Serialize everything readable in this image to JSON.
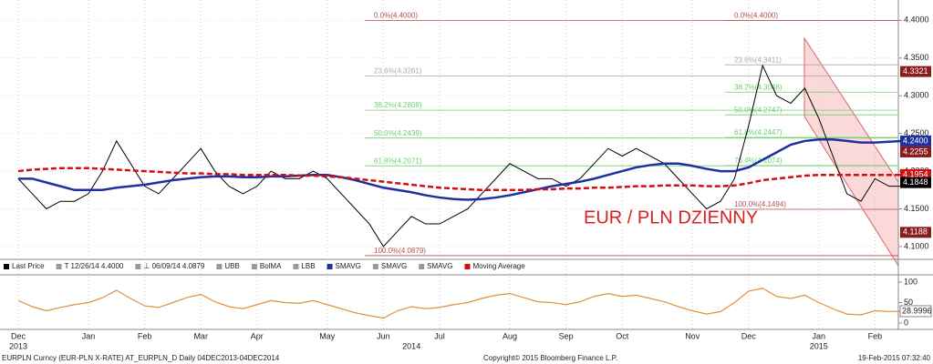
{
  "chart_data": {
    "type": "line",
    "annotation": "EUR / PLN DZIENNY",
    "categories": [
      "Dec",
      null,
      null,
      null,
      null,
      "Jan",
      null,
      null,
      null,
      "Feb",
      null,
      null,
      null,
      "Mar",
      null,
      null,
      null,
      "Apr",
      null,
      null,
      null,
      null,
      "May",
      null,
      null,
      null,
      "Jun",
      null,
      null,
      null,
      "Jul",
      null,
      null,
      null,
      null,
      "Aug",
      null,
      null,
      null,
      "Sep",
      null,
      null,
      null,
      "Oct",
      null,
      null,
      null,
      null,
      "Nov",
      null,
      null,
      null,
      "Dec",
      null,
      null,
      null,
      null,
      "Jan",
      null,
      null,
      null,
      "Feb",
      null,
      null
    ],
    "year_labels": [
      "2013",
      null,
      null,
      null,
      null,
      null,
      null,
      null,
      null,
      null,
      null,
      null,
      null,
      null,
      null,
      null,
      null,
      null,
      null,
      null,
      null,
      null,
      null,
      null,
      null,
      null,
      null,
      null,
      "2014",
      null,
      null,
      null,
      null,
      null,
      null,
      null,
      null,
      null,
      null,
      null,
      null,
      null,
      null,
      null,
      null,
      null,
      null,
      null,
      null,
      null,
      null,
      null,
      null,
      null,
      null,
      null,
      null,
      "2015",
      null,
      null,
      null,
      null,
      null,
      null
    ],
    "ylim": [
      4.083,
      4.427
    ],
    "yticks": [
      {
        "value": 4.1,
        "label": "4.1000"
      },
      {
        "value": 4.15,
        "label": "4.1500"
      },
      {
        "value": 4.2,
        "label": "4.2000"
      },
      {
        "value": 4.25,
        "label": "4.2500"
      },
      {
        "value": 4.3,
        "label": "4.3000"
      },
      {
        "value": 4.35,
        "label": "4.3500"
      },
      {
        "value": 4.4,
        "label": "4.4000"
      }
    ],
    "series": [
      {
        "name": "Last Price",
        "color": "#000000",
        "legend_after": [
          "T 12/26/14 4.4000",
          "⊥ 06/09/14 4.0879",
          "UBB",
          "BolMA",
          "LBB"
        ],
        "values": [
          4.19,
          4.17,
          4.15,
          4.16,
          4.16,
          4.17,
          4.2,
          4.24,
          4.21,
          4.18,
          4.17,
          4.19,
          4.21,
          4.23,
          4.2,
          4.18,
          4.17,
          4.18,
          4.2,
          4.19,
          4.19,
          4.2,
          4.19,
          4.17,
          4.15,
          4.13,
          4.1,
          4.12,
          4.14,
          4.13,
          4.13,
          4.14,
          4.15,
          4.17,
          4.19,
          4.21,
          4.2,
          4.19,
          4.19,
          4.18,
          4.19,
          4.21,
          4.23,
          4.22,
          4.23,
          4.22,
          4.21,
          4.19,
          4.17,
          4.15,
          4.16,
          4.19,
          4.26,
          4.34,
          4.3,
          4.29,
          4.31,
          4.27,
          4.22,
          4.17,
          4.16,
          4.19,
          4.18,
          4.18
        ]
      },
      {
        "name": "SMAVG",
        "color": "#1f2fa0",
        "legend_after": [
          "SMAVG",
          "SMAVG"
        ],
        "values": [
          4.19,
          4.19,
          4.185,
          4.18,
          4.175,
          4.175,
          4.175,
          4.178,
          4.18,
          4.182,
          4.185,
          4.188,
          4.19,
          4.192,
          4.193,
          4.193,
          4.192,
          4.192,
          4.193,
          4.193,
          4.194,
          4.195,
          4.195,
          4.192,
          4.188,
          4.183,
          4.178,
          4.175,
          4.172,
          4.168,
          4.165,
          4.163,
          4.162,
          4.163,
          4.165,
          4.168,
          4.172,
          4.176,
          4.18,
          4.183,
          4.186,
          4.19,
          4.195,
          4.2,
          4.205,
          4.208,
          4.21,
          4.21,
          4.207,
          4.203,
          4.2,
          4.2,
          4.205,
          4.215,
          4.225,
          4.235,
          4.24,
          4.242,
          4.242,
          4.24,
          4.238,
          4.238,
          4.239,
          4.24
        ]
      },
      {
        "name": "Moving Average",
        "color": "#d01010",
        "legend_after": [],
        "values": [
          4.2,
          4.202,
          4.203,
          4.204,
          4.204,
          4.204,
          4.203,
          4.202,
          4.201,
          4.2,
          4.199,
          4.198,
          4.197,
          4.197,
          4.196,
          4.196,
          4.195,
          4.195,
          4.195,
          4.195,
          4.194,
          4.194,
          4.193,
          4.192,
          4.19,
          4.188,
          4.186,
          4.184,
          4.182,
          4.18,
          4.178,
          4.177,
          4.176,
          4.175,
          4.175,
          4.175,
          4.175,
          4.176,
          4.176,
          4.177,
          4.177,
          4.178,
          4.178,
          4.179,
          4.18,
          4.18,
          4.181,
          4.181,
          4.181,
          4.18,
          4.18,
          4.181,
          4.184,
          4.188,
          4.19,
          4.192,
          4.194,
          4.195,
          4.195,
          4.195,
          4.195,
          4.195,
          4.195,
          4.195
        ]
      }
    ],
    "right_labels": [
      {
        "value": 4.3321,
        "label": "4.3321",
        "color": "#8b1a1a"
      },
      {
        "value": 4.24,
        "label": "4.2400",
        "color": "#1f2fa0"
      },
      {
        "value": 4.2255,
        "label": "4.2255",
        "color": "#8b1a1a"
      },
      {
        "value": 4.1954,
        "label": "4.1954",
        "color": "#d01010"
      },
      {
        "value": 4.1848,
        "label": "4.1848",
        "color": "#000000"
      },
      {
        "value": 4.1188,
        "label": "4.1188",
        "color": "#8b1a1a"
      }
    ],
    "fib_left": [
      {
        "label": "0.0%(4.4000)",
        "value": 4.4
      },
      {
        "label": "23.6%(4.3261)",
        "value": 4.3261
      },
      {
        "label": "38.2%(4.2808)",
        "value": 4.2808
      },
      {
        "label": "50.0%(4.2439)",
        "value": 4.2439
      },
      {
        "label": "61.8%(4.2071)",
        "value": 4.2071
      },
      {
        "label": "100.0%(4.0879)",
        "value": 4.0879
      }
    ],
    "fib_right": [
      {
        "label": "0.0%(4.4000)",
        "value": 4.4
      },
      {
        "label": "23.6%(4.3411)",
        "value": 4.3411
      },
      {
        "label": "38.2%(4.3048)",
        "value": 4.3048
      },
      {
        "label": "50.0%(4.2747)",
        "value": 4.2747
      },
      {
        "label": "61.8%(4.2447)",
        "value": 4.2447
      },
      {
        "label": "76.4%(4.2074)",
        "value": 4.2074
      },
      {
        "label": "100.0%(4.1494)",
        "value": 4.1494
      }
    ],
    "rsi": {
      "color": "#e09040",
      "ylim": [
        0,
        100
      ],
      "yticks": [
        0,
        50,
        100
      ],
      "last_label": {
        "value": 28.9996,
        "label": "28.9996"
      },
      "values": [
        55,
        40,
        30,
        38,
        45,
        50,
        62,
        80,
        60,
        42,
        38,
        50,
        62,
        70,
        52,
        40,
        35,
        45,
        55,
        50,
        48,
        55,
        45,
        35,
        25,
        18,
        12,
        30,
        40,
        35,
        38,
        45,
        50,
        60,
        68,
        72,
        62,
        52,
        50,
        45,
        52,
        65,
        72,
        65,
        68,
        60,
        52,
        40,
        30,
        22,
        28,
        50,
        78,
        85,
        65,
        60,
        68,
        50,
        35,
        22,
        20,
        30,
        28,
        29
      ]
    },
    "footer": {
      "left": "EURPLN Curncy (EUR-PLN X-RATE) AT_EURPLN_D  Daily 04DEC2013-04DEC2014",
      "center": "Copyright© 2015 Bloomberg Finance L.P.",
      "right": "19-Feb-2015 07:32:40"
    }
  }
}
